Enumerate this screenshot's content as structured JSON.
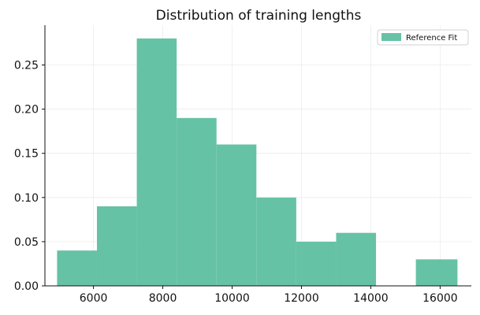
{
  "chart_data": {
    "type": "bar",
    "title": "Distribution of training lengths",
    "xlabel": "",
    "ylabel": "",
    "xlim": [
      4600,
      16900
    ],
    "ylim": [
      0,
      0.295
    ],
    "x_ticks": [
      6000,
      8000,
      10000,
      12000,
      14000,
      16000
    ],
    "x_tick_labels": [
      "6000",
      "8000",
      "10000",
      "12000",
      "14000",
      "16000"
    ],
    "y_ticks": [
      0,
      0.05,
      0.1,
      0.15,
      0.2,
      0.25
    ],
    "y_tick_labels": [
      "0.00",
      "0.05",
      "0.10",
      "0.15",
      "0.20",
      "0.25"
    ],
    "bins": [
      {
        "x0": 4950,
        "x1": 6100,
        "value": 0.04
      },
      {
        "x0": 6100,
        "x1": 7250,
        "value": 0.09
      },
      {
        "x0": 7250,
        "x1": 8400,
        "value": 0.28
      },
      {
        "x0": 8400,
        "x1": 9550,
        "value": 0.19
      },
      {
        "x0": 9550,
        "x1": 10700,
        "value": 0.16
      },
      {
        "x0": 10700,
        "x1": 11850,
        "value": 0.1
      },
      {
        "x0": 11850,
        "x1": 13000,
        "value": 0.05
      },
      {
        "x0": 13000,
        "x1": 14150,
        "value": 0.06
      },
      {
        "x0": 14150,
        "x1": 15300,
        "value": 0.0
      },
      {
        "x0": 15300,
        "x1": 16500,
        "value": 0.03
      }
    ],
    "series": [
      {
        "name": "Reference Fit",
        "color": "#66c2a5"
      }
    ],
    "grid": true,
    "legend_position": "top-right"
  }
}
